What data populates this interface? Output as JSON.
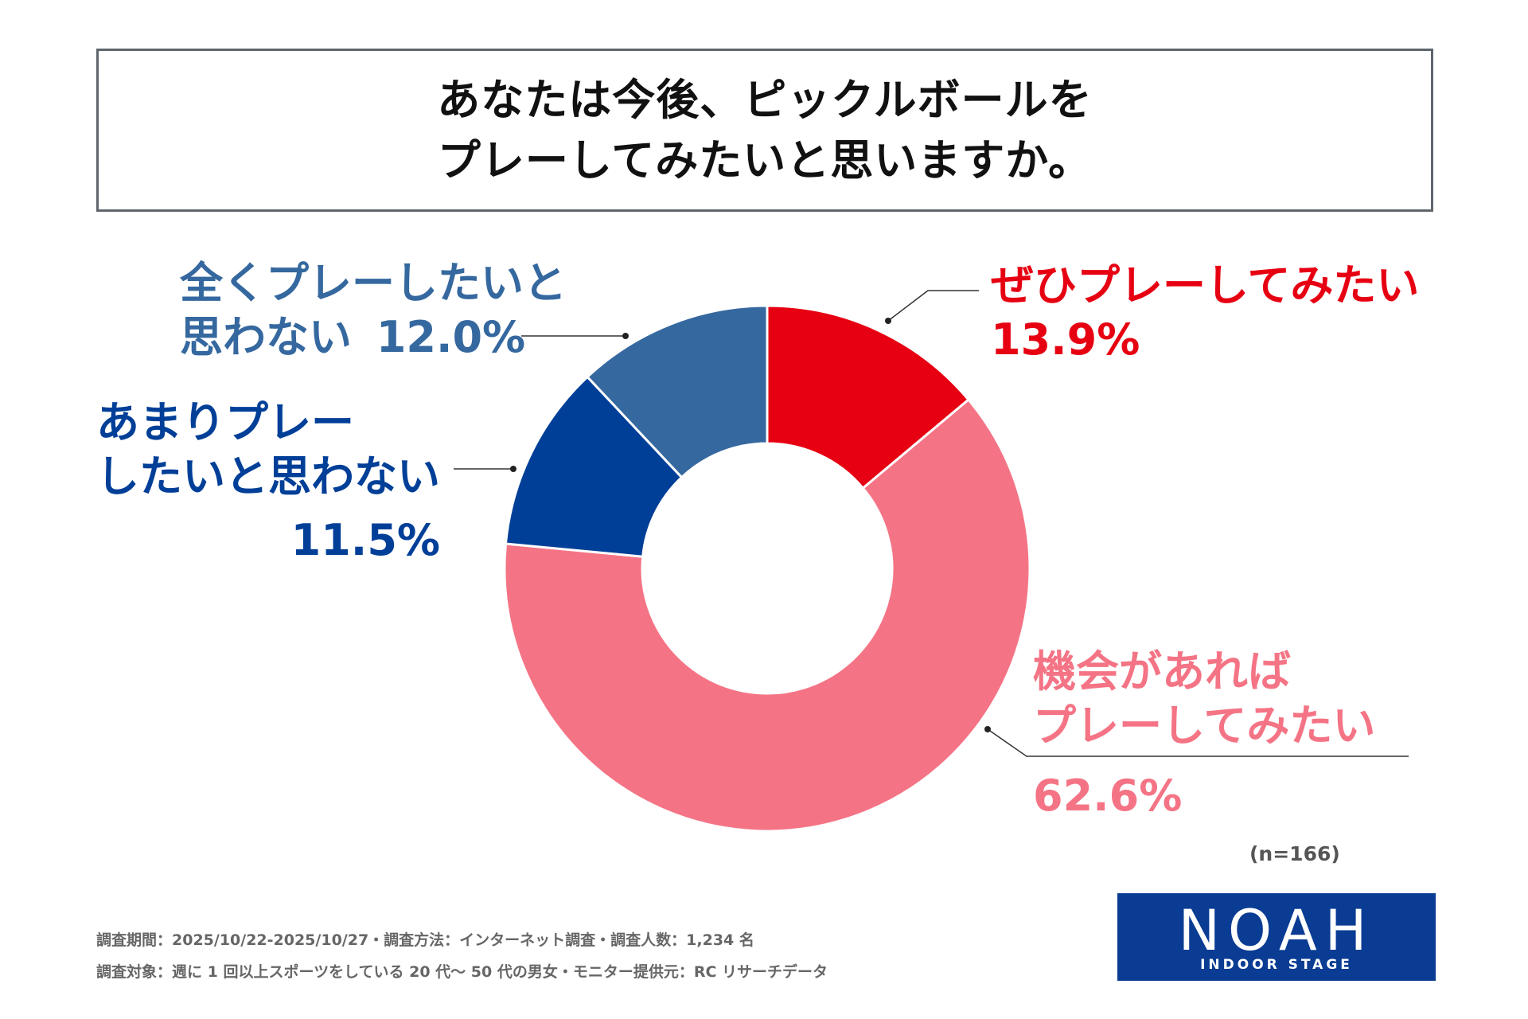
{
  "title": {
    "line1": "あなたは今後、ピックルボールを",
    "line2": "プレーしてみたいと思いますか。"
  },
  "chart_data": {
    "type": "pie",
    "title": "あなたは今後、ピックルボールをプレーしてみたいと思いますか。",
    "slices": [
      {
        "label": "ぜひプレーしてみたい",
        "value": 13.9,
        "color": "#e60012"
      },
      {
        "label": "機会があればプレーしてみたい",
        "value": 62.6,
        "color": "#f47485"
      },
      {
        "label": "あまりプレーしたいと思わない",
        "value": 11.5,
        "color": "#003f98"
      },
      {
        "label": "全くプレーしたいと思わない",
        "value": 12.0,
        "color": "#35689f"
      }
    ],
    "sample": "(n=166)"
  },
  "labels": {
    "s0": {
      "line1": "ぜひプレーしてみたい",
      "pct": "13.9%"
    },
    "s1": {
      "line1": "機会があれば",
      "line2": "プレーしてみたい",
      "pct": "62.6%"
    },
    "s2": {
      "line1": "あまりプレー",
      "line2": "したいと思わない",
      "pct": "11.5%"
    },
    "s3": {
      "line1": "全くプレーしたいと",
      "line2": "思わない",
      "pct": "12.0%"
    }
  },
  "footnotes": {
    "line1": "調査期間：2025/10/22-2025/10/27・調査方法：インターネット調査・調査人数：1,234 名",
    "line2": "調査対象：週に 1 回以上スポーツをしている 20 代〜 50 代の男女・モニター提供元：RC リサーチデータ"
  },
  "logo": {
    "text": "NOAH",
    "sub": "INDOOR STAGE"
  }
}
